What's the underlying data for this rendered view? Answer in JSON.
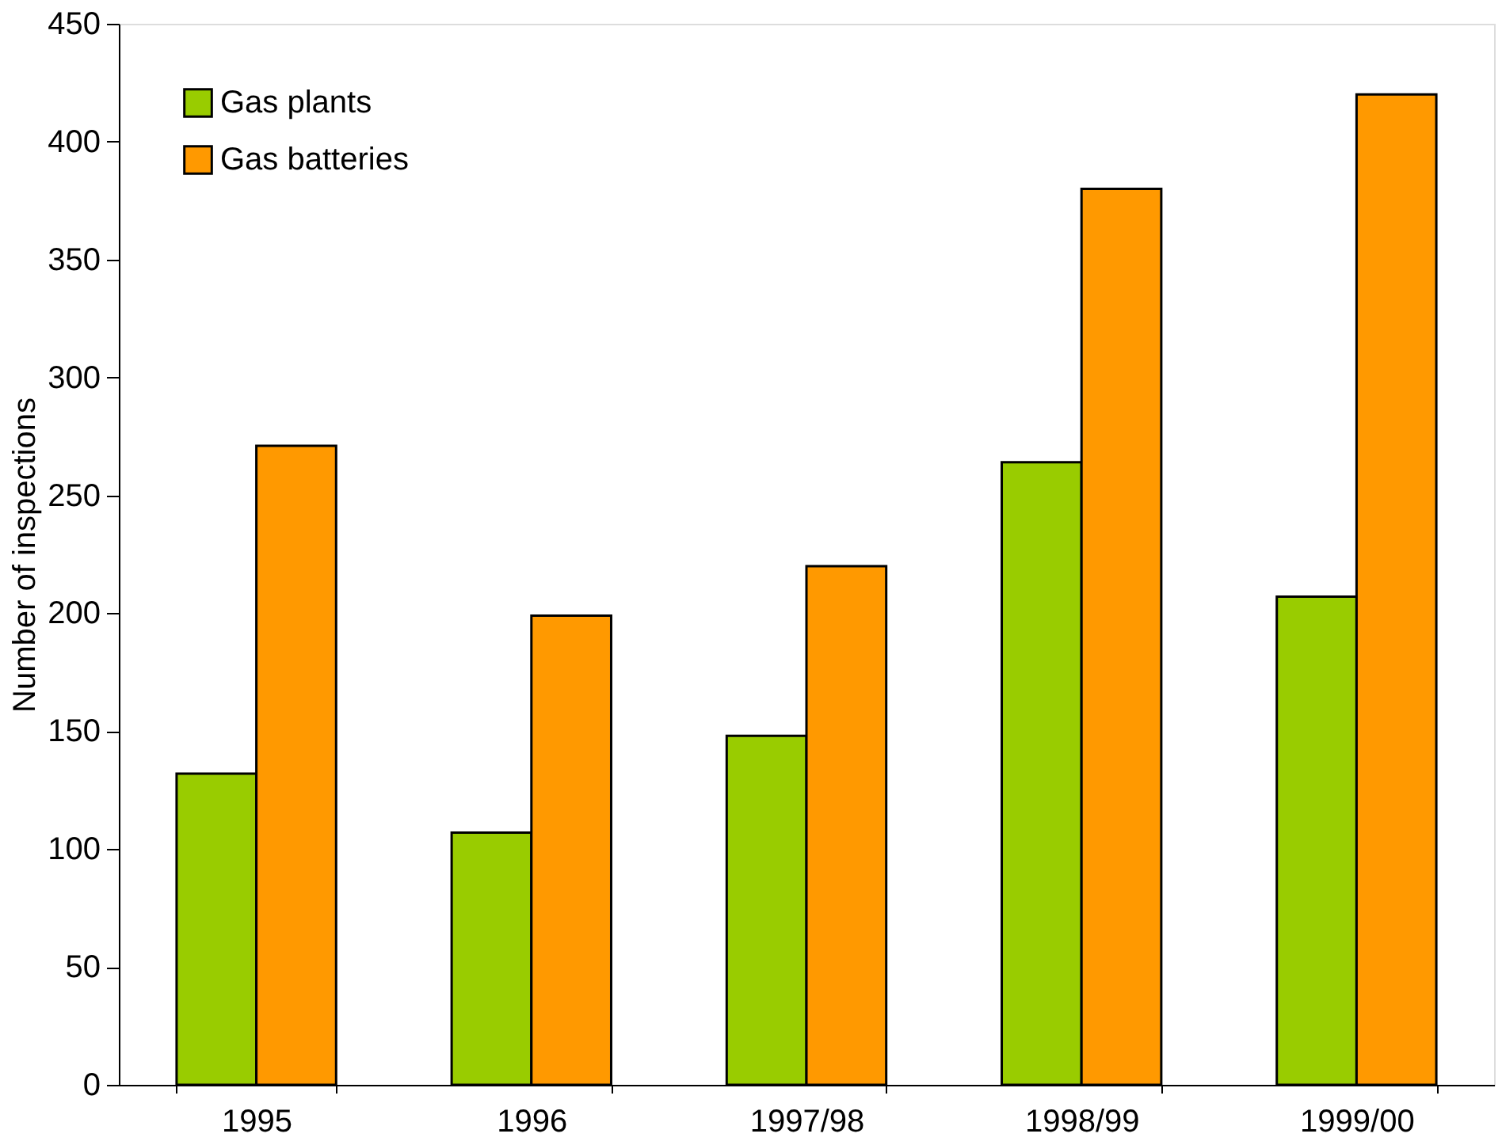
{
  "chart_data": {
    "type": "bar",
    "ylabel": "Number of inspections",
    "categories": [
      "1995",
      "1996",
      "1997/98",
      "1998/99",
      "1999/00"
    ],
    "series": [
      {
        "name": "Gas plants",
        "color": "#99cc00",
        "values": [
          132,
          107,
          148,
          264,
          207
        ]
      },
      {
        "name": "Gas batteries",
        "color": "#ff9900",
        "values": [
          271,
          199,
          220,
          380,
          420
        ]
      }
    ],
    "ylim": [
      0,
      450
    ],
    "yticks": [
      0,
      50,
      100,
      150,
      200,
      250,
      300,
      350,
      400,
      450
    ],
    "grid": false,
    "legend": "top left"
  }
}
